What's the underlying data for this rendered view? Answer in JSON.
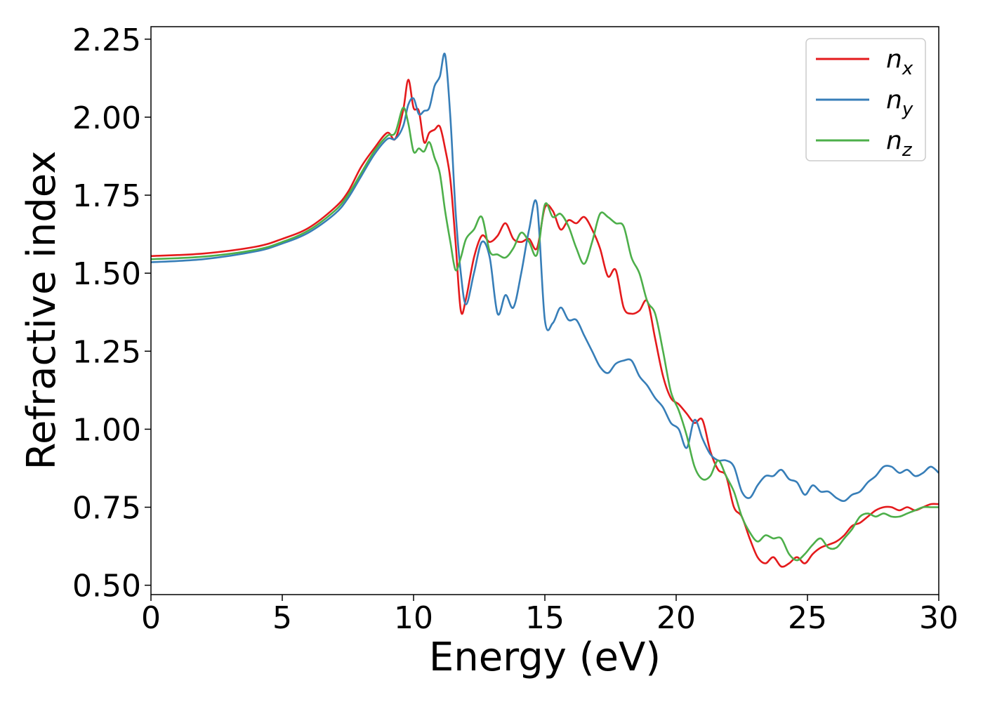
{
  "chart_data": {
    "type": "line",
    "xlabel": "Energy (eV)",
    "ylabel": "Refractive index",
    "xlim": [
      0,
      30
    ],
    "ylim": [
      0.47,
      2.29
    ],
    "xticks": [
      0,
      5,
      10,
      15,
      20,
      25,
      30
    ],
    "xtick_labels": [
      "0",
      "5",
      "10",
      "15",
      "20",
      "25",
      "30"
    ],
    "yticks": [
      0.5,
      0.75,
      1.0,
      1.25,
      1.5,
      1.75,
      2.0,
      2.25
    ],
    "ytick_labels": [
      "0.50",
      "0.75",
      "1.00",
      "1.25",
      "1.50",
      "1.75",
      "2.00",
      "2.25"
    ],
    "grid": false,
    "legend_position": "top-right",
    "series": [
      {
        "name": "n",
        "subscript": "x",
        "color": "#e41a1c",
        "x": [
          0,
          2,
          4,
          5,
          6,
          7,
          7.5,
          8,
          8.5,
          9,
          9.3,
          9.6,
          9.8,
          10.0,
          10.2,
          10.4,
          10.6,
          10.8,
          11.0,
          11.2,
          11.4,
          11.6,
          11.8,
          12.0,
          12.3,
          12.6,
          12.9,
          13.2,
          13.5,
          13.8,
          14.1,
          14.4,
          14.7,
          15.0,
          15.3,
          15.6,
          15.9,
          16.2,
          16.5,
          16.8,
          17.1,
          17.4,
          17.7,
          18.0,
          18.3,
          18.6,
          18.9,
          19.2,
          19.5,
          19.8,
          20.1,
          20.4,
          20.7,
          21.0,
          21.3,
          21.6,
          21.9,
          22.2,
          22.5,
          22.8,
          23.1,
          23.4,
          23.7,
          24.0,
          24.3,
          24.6,
          24.9,
          25.2,
          25.5,
          25.8,
          26.1,
          26.4,
          26.7,
          27.0,
          27.3,
          27.6,
          27.9,
          28.2,
          28.5,
          28.8,
          29.1,
          29.4,
          29.7,
          30.0
        ],
        "values": [
          1.555,
          1.563,
          1.585,
          1.61,
          1.645,
          1.71,
          1.76,
          1.84,
          1.9,
          1.95,
          1.93,
          2.02,
          2.12,
          2.03,
          2.02,
          1.92,
          1.95,
          1.96,
          1.97,
          1.9,
          1.8,
          1.6,
          1.38,
          1.42,
          1.55,
          1.62,
          1.6,
          1.62,
          1.66,
          1.61,
          1.6,
          1.61,
          1.58,
          1.71,
          1.7,
          1.64,
          1.67,
          1.66,
          1.68,
          1.64,
          1.58,
          1.49,
          1.51,
          1.39,
          1.37,
          1.38,
          1.41,
          1.29,
          1.17,
          1.1,
          1.08,
          1.05,
          1.02,
          1.03,
          0.93,
          0.87,
          0.85,
          0.75,
          0.72,
          0.65,
          0.59,
          0.57,
          0.59,
          0.56,
          0.57,
          0.59,
          0.57,
          0.6,
          0.62,
          0.63,
          0.64,
          0.66,
          0.69,
          0.7,
          0.72,
          0.74,
          0.75,
          0.75,
          0.74,
          0.75,
          0.74,
          0.75,
          0.76,
          0.76
        ]
      },
      {
        "name": "n",
        "subscript": "y",
        "color": "#377eb8",
        "x": [
          0,
          2,
          4,
          5,
          6,
          7,
          7.5,
          8,
          8.5,
          9,
          9.3,
          9.6,
          9.8,
          10.0,
          10.2,
          10.4,
          10.6,
          10.8,
          11.0,
          11.2,
          11.4,
          11.6,
          11.8,
          12.0,
          12.3,
          12.6,
          12.9,
          13.2,
          13.5,
          13.8,
          14.1,
          14.4,
          14.7,
          15.0,
          15.3,
          15.6,
          15.9,
          16.2,
          16.5,
          16.8,
          17.1,
          17.4,
          17.7,
          18.0,
          18.3,
          18.6,
          18.9,
          19.2,
          19.5,
          19.8,
          20.1,
          20.4,
          20.7,
          21.0,
          21.3,
          21.6,
          21.9,
          22.2,
          22.5,
          22.8,
          23.1,
          23.4,
          23.7,
          24.0,
          24.3,
          24.6,
          24.9,
          25.2,
          25.5,
          25.8,
          26.1,
          26.4,
          26.7,
          27.0,
          27.3,
          27.6,
          27.9,
          28.2,
          28.5,
          28.8,
          29.1,
          29.4,
          29.7,
          30.0
        ],
        "values": [
          1.535,
          1.545,
          1.57,
          1.595,
          1.63,
          1.69,
          1.74,
          1.81,
          1.88,
          1.93,
          1.93,
          1.97,
          2.04,
          2.06,
          2.01,
          2.02,
          2.03,
          2.1,
          2.13,
          2.2,
          2.0,
          1.7,
          1.5,
          1.4,
          1.5,
          1.6,
          1.55,
          1.37,
          1.43,
          1.39,
          1.5,
          1.64,
          1.72,
          1.35,
          1.34,
          1.39,
          1.35,
          1.35,
          1.3,
          1.25,
          1.2,
          1.18,
          1.21,
          1.22,
          1.22,
          1.17,
          1.14,
          1.1,
          1.07,
          1.02,
          1.0,
          0.94,
          1.03,
          0.97,
          0.92,
          0.9,
          0.9,
          0.88,
          0.8,
          0.78,
          0.82,
          0.85,
          0.85,
          0.87,
          0.84,
          0.83,
          0.79,
          0.82,
          0.8,
          0.8,
          0.78,
          0.77,
          0.79,
          0.8,
          0.83,
          0.85,
          0.88,
          0.88,
          0.86,
          0.87,
          0.85,
          0.86,
          0.88,
          0.86
        ]
      },
      {
        "name": "n",
        "subscript": "z",
        "color": "#4daf4a",
        "x": [
          0,
          2,
          4,
          5,
          6,
          7,
          7.5,
          8,
          8.5,
          9,
          9.3,
          9.6,
          9.8,
          10.0,
          10.2,
          10.4,
          10.6,
          10.8,
          11.0,
          11.2,
          11.4,
          11.6,
          11.8,
          12.0,
          12.3,
          12.6,
          12.9,
          13.2,
          13.5,
          13.8,
          14.1,
          14.4,
          14.7,
          15.0,
          15.3,
          15.6,
          15.9,
          16.2,
          16.5,
          16.8,
          17.1,
          17.4,
          17.7,
          18.0,
          18.3,
          18.6,
          18.9,
          19.2,
          19.5,
          19.8,
          20.1,
          20.4,
          20.7,
          21.0,
          21.3,
          21.6,
          21.9,
          22.2,
          22.5,
          22.8,
          23.1,
          23.4,
          23.7,
          24.0,
          24.3,
          24.6,
          24.9,
          25.2,
          25.5,
          25.8,
          26.1,
          26.4,
          26.7,
          27.0,
          27.3,
          27.6,
          27.9,
          28.2,
          28.5,
          28.8,
          29.1,
          29.4,
          29.7,
          30.0
        ],
        "values": [
          1.545,
          1.553,
          1.575,
          1.6,
          1.637,
          1.7,
          1.75,
          1.82,
          1.89,
          1.94,
          1.95,
          2.03,
          1.98,
          1.89,
          1.9,
          1.89,
          1.92,
          1.87,
          1.82,
          1.7,
          1.6,
          1.51,
          1.55,
          1.61,
          1.64,
          1.68,
          1.57,
          1.56,
          1.55,
          1.58,
          1.63,
          1.6,
          1.56,
          1.72,
          1.68,
          1.69,
          1.65,
          1.58,
          1.53,
          1.6,
          1.69,
          1.68,
          1.66,
          1.65,
          1.55,
          1.5,
          1.41,
          1.37,
          1.25,
          1.12,
          1.06,
          0.98,
          0.88,
          0.84,
          0.85,
          0.9,
          0.85,
          0.8,
          0.72,
          0.67,
          0.64,
          0.66,
          0.65,
          0.65,
          0.6,
          0.58,
          0.6,
          0.63,
          0.65,
          0.62,
          0.62,
          0.65,
          0.68,
          0.72,
          0.73,
          0.72,
          0.73,
          0.72,
          0.72,
          0.73,
          0.74,
          0.75,
          0.75,
          0.75
        ]
      }
    ]
  }
}
